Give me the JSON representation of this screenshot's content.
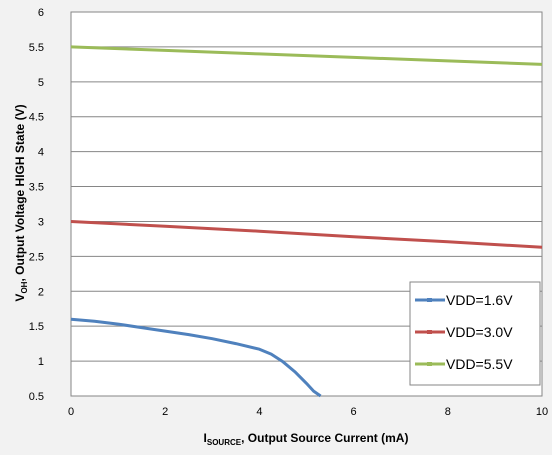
{
  "chart_data": {
    "type": "line",
    "title": "",
    "xlabel": {
      "main": "I",
      "sub": "SOURCE",
      "rest": ", Output Source Current (mA)"
    },
    "ylabel": {
      "main": "V",
      "sub": "OH",
      "rest": ", Output Voltage  HIGH State (V)"
    },
    "xlim": [
      0,
      10
    ],
    "ylim": [
      0.5,
      6
    ],
    "xticks": [
      "0",
      "2",
      "4",
      "6",
      "8",
      "10"
    ],
    "yticks": [
      "0.5",
      "1",
      "1.5",
      "2",
      "2.5",
      "3",
      "3.5",
      "4",
      "4.5",
      "5",
      "5.5",
      "6"
    ],
    "grid": "horizontal",
    "legend_position": "bottom-right",
    "series": [
      {
        "name": "VDD=1.6V",
        "color": "#4f81bd",
        "x": [
          0,
          0.5,
          1,
          1.5,
          2,
          2.5,
          3,
          3.5,
          4,
          4.25,
          4.5,
          4.75,
          5,
          5.15,
          5.3
        ],
        "y": [
          1.6,
          1.57,
          1.53,
          1.48,
          1.43,
          1.38,
          1.32,
          1.25,
          1.17,
          1.1,
          0.99,
          0.85,
          0.68,
          0.57,
          0.5
        ]
      },
      {
        "name": "VDD=3.0V",
        "color": "#c0504d",
        "x": [
          0,
          2,
          4,
          6,
          8,
          10
        ],
        "y": [
          3.0,
          2.93,
          2.86,
          2.78,
          2.71,
          2.63
        ]
      },
      {
        "name": "VDD=5.5V",
        "color": "#9bbb59",
        "x": [
          0,
          2,
          4,
          6,
          8,
          10
        ],
        "y": [
          5.5,
          5.45,
          5.4,
          5.35,
          5.3,
          5.25
        ]
      }
    ]
  }
}
